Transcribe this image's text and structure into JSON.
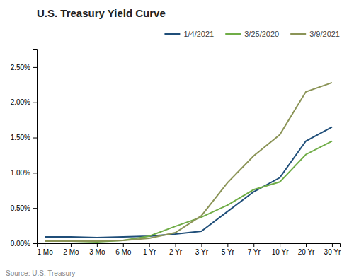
{
  "chart_data": {
    "type": "line",
    "title": "U.S. Treasury Yield  Curve",
    "annotations": [
      "Source: U.S. Treasury"
    ],
    "categories": [
      "1 Mo",
      "2 Mo",
      "3 Mo",
      "6 Mo",
      "1 Yr",
      "2 Yr",
      "3 Yr",
      "5 Yr",
      "7 Yr",
      "10 Yr",
      "20 Yr",
      "30 Yr"
    ],
    "series": [
      {
        "name": "1/4/2021",
        "color": "#1f4e79",
        "values": [
          0.09,
          0.09,
          0.08,
          0.09,
          0.1,
          0.13,
          0.17,
          0.45,
          0.73,
          0.93,
          1.45,
          1.65
        ]
      },
      {
        "name": "3/25/2020",
        "color": "#70ad47",
        "values": [
          0.04,
          0.03,
          0.02,
          0.04,
          0.1,
          0.24,
          0.37,
          0.54,
          0.76,
          0.87,
          1.26,
          1.45
        ]
      },
      {
        "name": "3/9/2021",
        "color": "#8b9457",
        "values": [
          0.03,
          0.03,
          0.03,
          0.04,
          0.07,
          0.15,
          0.39,
          0.86,
          1.24,
          1.54,
          2.15,
          2.28
        ]
      }
    ],
    "ylim": [
      0.0,
      2.75
    ],
    "yticks": [
      {
        "value": 0.0,
        "label": "0.00%"
      },
      {
        "value": 0.5,
        "label": "0.50%"
      },
      {
        "value": 1.0,
        "label": "1.00%"
      },
      {
        "value": 1.5,
        "label": "1.50%"
      },
      {
        "value": 2.0,
        "label": "2.00%"
      },
      {
        "value": 2.5,
        "label": "2.50%"
      }
    ],
    "grid": false,
    "legend": "upper right"
  }
}
